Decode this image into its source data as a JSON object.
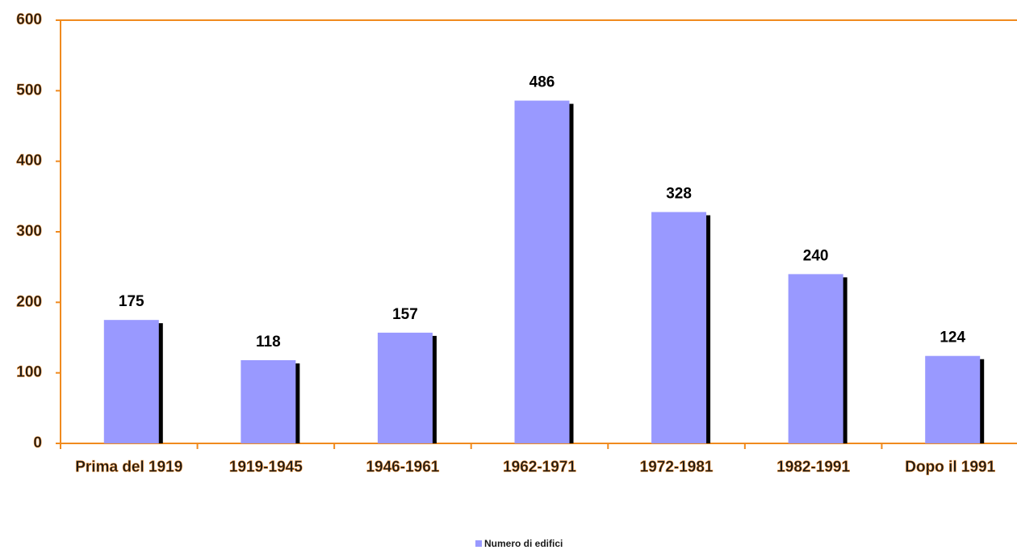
{
  "chart_data": {
    "type": "bar",
    "categories": [
      "Prima del 1919",
      "1919-1945",
      "1946-1961",
      "1962-1971",
      "1972-1981",
      "1982-1991",
      "Dopo il 1991"
    ],
    "series": [
      {
        "name": "Numero di edifici",
        "color": "#9999ff",
        "values": [
          175,
          118,
          157,
          486,
          328,
          240,
          124
        ]
      }
    ],
    "ylim": [
      0,
      600
    ],
    "yticks": [
      0,
      100,
      200,
      300,
      400,
      500,
      600
    ],
    "axis_color": "#f08a1e",
    "shadow_color": "#000000",
    "legend": "bottom",
    "data_labels": true
  }
}
